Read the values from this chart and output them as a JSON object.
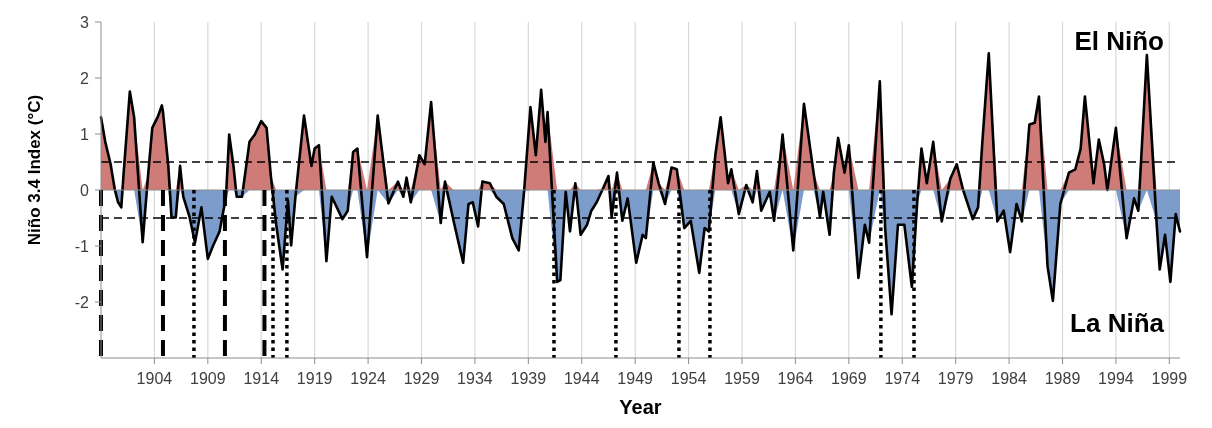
{
  "chart_data": {
    "type": "line",
    "xlabel": "Year",
    "ylabel": "Niño 3.4 Index (°C)",
    "annotations": [
      "El Niño",
      "La Niña"
    ],
    "xlim": [
      1899,
      2000
    ],
    "xticks": [
      1904,
      1909,
      1914,
      1919,
      1924,
      1929,
      1934,
      1939,
      1944,
      1949,
      1954,
      1959,
      1964,
      1969,
      1974,
      1979,
      1984,
      1989,
      1994,
      1999
    ],
    "ylim": [
      -3,
      3
    ],
    "yticks": [
      -2,
      -1,
      0,
      1,
      2,
      3
    ],
    "grid": "x",
    "marker": "none",
    "line_style": "solid",
    "x": [
      1899,
      1899.4,
      1899.9,
      1900.3,
      1900.6,
      1900.9,
      1901.1,
      1901.7,
      1902.1,
      1902.9,
      1903.4,
      1903.8,
      1904.3,
      1904.7,
      1904.8,
      1905.3,
      1905.6,
      1906,
      1906.4,
      1906.7,
      1907.3,
      1907.8,
      1908.4,
      1909,
      1909.5,
      1910.1,
      1910.7,
      1911,
      1911.4,
      1911.7,
      1912.2,
      1912.9,
      1913.4,
      1914,
      1914.5,
      1914.9,
      1915.4,
      1916,
      1916.5,
      1916.8,
      1917.2,
      1918,
      1918.7,
      1919,
      1919.4,
      1920.1,
      1920.6,
      1920.9,
      1921.6,
      1922.1,
      1922.6,
      1923,
      1923.9,
      1924.9,
      1925.9,
      1926.8,
      1927.3,
      1927.6,
      1928,
      1928.8,
      1929.3,
      1929.9,
      1930.8,
      1931.2,
      1932,
      1932.9,
      1933.4,
      1933.8,
      1934.3,
      1934.7,
      1935.4,
      1936,
      1936.7,
      1937.5,
      1938.1,
      1938.6,
      1939.2,
      1939.7,
      1940.2,
      1940.6,
      1940.8,
      1941.7,
      1942,
      1942.5,
      1942.9,
      1943.4,
      1943.9,
      1944.5,
      1944.9,
      1945.4,
      1946,
      1946.5,
      1946.8,
      1947.3,
      1947.8,
      1948.3,
      1949.1,
      1949.7,
      1950,
      1950.7,
      1951.2,
      1951.8,
      1952.4,
      1952.9,
      1953.6,
      1954.2,
      1955,
      1955.5,
      1955.9,
      1956.5,
      1957,
      1957.7,
      1958,
      1958.7,
      1959.4,
      1960,
      1960.4,
      1960.8,
      1961.6,
      1962,
      1962.8,
      1963.8,
      1964.8,
      1965.7,
      1966.3,
      1966.6,
      1967.2,
      1967.6,
      1968,
      1968.6,
      1969,
      1969.9,
      1970.5,
      1970.9,
      1971.9,
      1972.4,
      1973,
      1973.6,
      1974.2,
      1974.9,
      1975.4,
      1975.8,
      1976.3,
      1976.9,
      1977.7,
      1978.5,
      1979.1,
      1979.7,
      1980.6,
      1981.1,
      1981.5,
      1982.1,
      1982.9,
      1983.5,
      1984.1,
      1984.7,
      1985.2,
      1985.9,
      1986.4,
      1986.8,
      1987.6,
      1988.1,
      1988.8,
      1989.6,
      1990.2,
      1990.7,
      1991.1,
      1991.9,
      1992.4,
      1992.9,
      1993.2,
      1994,
      1995,
      1995.7,
      1996.1,
      1996.9,
      1997.8,
      1998.1,
      1998.6,
      1999.1,
      1999.6,
      2000
    ],
    "series": [
      {
        "type": "area",
        "color": "#cf7b78",
        "values": [
          1.3,
          0.86,
          0.46,
          0,
          0,
          0,
          0.25,
          1.76,
          1.3,
          0,
          0.25,
          1.11,
          1.3,
          1.51,
          1.4,
          0.43,
          0,
          0,
          0.43,
          0,
          0,
          0,
          0,
          0,
          0,
          0,
          0,
          0.99,
          0.43,
          0,
          0,
          0.86,
          0.99,
          1.23,
          1.11,
          0.25,
          0,
          0,
          0,
          0,
          0,
          1.33,
          0.43,
          0.74,
          0.8,
          0,
          0,
          0,
          0,
          0,
          0.68,
          0.74,
          0,
          1.33,
          0,
          0.15,
          0,
          0.22,
          0,
          0.62,
          0.46,
          1.57,
          0,
          0.15,
          0,
          0,
          0,
          0,
          0,
          0.15,
          0.12,
          0,
          0,
          0,
          0,
          0,
          1.48,
          0.62,
          1.79,
          0.86,
          1.39,
          0,
          0,
          0,
          0,
          0.12,
          0,
          0,
          0,
          0,
          0.03,
          0.25,
          0,
          0.31,
          0,
          0,
          0,
          0,
          0,
          0.49,
          0.12,
          0,
          0.4,
          0.37,
          0,
          0,
          0,
          0,
          0,
          0.62,
          1.3,
          0.12,
          0.37,
          0,
          0.09,
          0,
          0.34,
          0,
          0,
          0,
          0.99,
          0,
          1.54,
          0.31,
          0,
          0,
          0,
          0.31,
          0.93,
          0.31,
          0.8,
          0,
          0,
          0,
          1.94,
          0,
          0,
          0,
          0,
          0,
          0,
          0.74,
          0.12,
          0.86,
          0,
          0.2,
          0.46,
          0,
          0,
          0,
          0.86,
          2.44,
          0,
          0,
          0,
          0,
          0,
          1.17,
          1.2,
          1.67,
          0,
          0,
          0,
          0.31,
          0.37,
          0.74,
          1.67,
          0.12,
          0.9,
          0.46,
          0,
          1.11,
          0,
          0,
          0,
          2.41,
          0,
          0,
          0,
          0,
          0,
          0
        ]
      },
      {
        "type": "area",
        "color": "#7c9ccc",
        "values": [
          0,
          0,
          0,
          0,
          -0.22,
          -0.31,
          0,
          0,
          0,
          -0.93,
          0,
          0,
          0,
          0,
          0,
          0,
          -0.49,
          -0.49,
          0,
          -0.12,
          -0.49,
          -0.94,
          -0.31,
          -1.23,
          -0.99,
          -0.74,
          -0.12,
          0,
          0,
          -0.12,
          -0.12,
          0,
          0,
          0,
          0,
          0,
          -0.62,
          -1.42,
          -0.19,
          -0.99,
          -0.12,
          0,
          0,
          0,
          0,
          -1.27,
          -0.12,
          -0.24,
          -0.52,
          -0.37,
          0,
          0,
          -1.2,
          0,
          -0.24,
          0,
          -0.12,
          0,
          -0.22,
          0,
          0,
          0,
          -0.59,
          0,
          -0.55,
          -1.3,
          -0.25,
          -0.22,
          -0.65,
          0,
          0,
          -0.12,
          -0.25,
          -0.86,
          -1.08,
          -0.03,
          0,
          0,
          0,
          0,
          0,
          -1.64,
          -1.61,
          -0.03,
          -0.74,
          0,
          -0.8,
          -0.62,
          -0.37,
          -0.22,
          0,
          0,
          -0.49,
          0,
          -0.55,
          -0.15,
          -1.3,
          -0.8,
          -0.86,
          0,
          0,
          -0.25,
          0,
          0,
          -0.68,
          -0.55,
          -1.48,
          -0.68,
          -0.74,
          0,
          0,
          0,
          0,
          -0.43,
          0,
          -0.22,
          0,
          -0.37,
          -0.03,
          -0.55,
          0,
          -1.08,
          0,
          0,
          -0.49,
          -0.03,
          -0.8,
          0,
          0,
          0,
          0,
          -1.57,
          -0.62,
          -0.94,
          0,
          -0.68,
          -2.22,
          -0.62,
          -0.62,
          -1.73,
          -0.22,
          0,
          0,
          0,
          -0.56,
          0,
          0,
          0,
          -0.52,
          -0.31,
          0,
          0,
          -0.56,
          -0.37,
          -1.11,
          -0.25,
          -0.56,
          0,
          0,
          0,
          -1.36,
          -1.98,
          -0.25,
          0,
          0,
          0,
          0,
          0,
          0,
          0,
          0,
          0,
          -0.86,
          -0.15,
          -0.37,
          0,
          -0.56,
          -1.42,
          -0.8,
          -1.64,
          -0.43,
          -0.74
        ]
      },
      {
        "color": "#000000",
        "values": [
          1.3,
          0.86,
          0.46,
          0,
          -0.22,
          -0.31,
          0.25,
          1.76,
          1.3,
          -0.93,
          0.25,
          1.11,
          1.3,
          1.51,
          1.4,
          0.43,
          -0.49,
          -0.49,
          0.43,
          -0.12,
          -0.49,
          -0.94,
          -0.31,
          -1.23,
          -0.99,
          -0.74,
          -0.12,
          0.99,
          0.43,
          -0.12,
          -0.12,
          0.86,
          0.99,
          1.23,
          1.11,
          0.25,
          -0.62,
          -1.42,
          -0.19,
          -0.99,
          -0.12,
          1.33,
          0.43,
          0.74,
          0.8,
          -1.27,
          -0.12,
          -0.24,
          -0.52,
          -0.37,
          0.68,
          0.74,
          -1.2,
          1.33,
          -0.24,
          0.15,
          -0.12,
          0.22,
          -0.22,
          0.62,
          0.46,
          1.57,
          -0.59,
          0.15,
          -0.55,
          -1.3,
          -0.25,
          -0.22,
          -0.65,
          0.15,
          0.12,
          -0.12,
          -0.25,
          -0.86,
          -1.08,
          -0.03,
          1.48,
          0.62,
          1.79,
          0.86,
          1.39,
          -1.64,
          -1.61,
          -0.03,
          -0.74,
          0.12,
          -0.8,
          -0.62,
          -0.37,
          -0.22,
          0.03,
          0.25,
          -0.49,
          0.31,
          -0.55,
          -0.15,
          -1.3,
          -0.8,
          -0.86,
          0.49,
          0.12,
          -0.25,
          0.4,
          0.37,
          -0.68,
          -0.55,
          -1.48,
          -0.68,
          -0.74,
          0.62,
          1.3,
          0.12,
          0.37,
          -0.43,
          0.09,
          -0.22,
          0.34,
          -0.37,
          -0.03,
          -0.55,
          0.99,
          -1.08,
          1.54,
          0.31,
          -0.49,
          -0.03,
          -0.8,
          0.31,
          0.93,
          0.31,
          0.8,
          -1.57,
          -0.62,
          -0.94,
          1.94,
          -0.68,
          -2.22,
          -0.62,
          -0.62,
          -1.73,
          -0.22,
          0.74,
          0.12,
          0.86,
          -0.56,
          0.2,
          0.46,
          0,
          -0.52,
          -0.31,
          0.86,
          2.44,
          -0.56,
          -0.37,
          -1.11,
          -0.25,
          -0.56,
          1.17,
          1.2,
          1.67,
          -1.36,
          -1.98,
          -0.25,
          0.31,
          0.37,
          0.74,
          1.67,
          0.12,
          0.9,
          0.46,
          0,
          1.11,
          -0.86,
          -0.15,
          -0.37,
          2.41,
          -0.56,
          -1.42,
          -0.8,
          -1.64,
          -0.43,
          -0.74
        ]
      }
    ],
    "ref_lines": [
      {
        "axis": "y",
        "value": 0.5,
        "line_style": "dashed",
        "color": "#000000"
      },
      {
        "axis": "y",
        "value": -0.5,
        "line_style": "dashed",
        "color": "#000000"
      },
      {
        "axis": "x",
        "value": 1899,
        "line_style": "dashed",
        "color": "#000000"
      },
      {
        "axis": "x",
        "value": 1904.8,
        "line_style": "dashed",
        "color": "#000000"
      },
      {
        "axis": "x",
        "value": 1907.7,
        "line_style": "dotted",
        "color": "#000000"
      },
      {
        "axis": "x",
        "value": 1910.6,
        "line_style": "dashed",
        "color": "#000000"
      },
      {
        "axis": "x",
        "value": 1914.3,
        "line_style": "dashed",
        "color": "#000000"
      },
      {
        "axis": "x",
        "value": 1915.1,
        "line_style": "dotted",
        "color": "#000000"
      },
      {
        "axis": "x",
        "value": 1916.4,
        "line_style": "dotted",
        "color": "#000000"
      },
      {
        "axis": "x",
        "value": 1941.4,
        "line_style": "dotted",
        "color": "#000000"
      },
      {
        "axis": "x",
        "value": 1947.2,
        "line_style": "dotted",
        "color": "#000000"
      },
      {
        "axis": "x",
        "value": 1953.1,
        "line_style": "dotted",
        "color": "#000000"
      },
      {
        "axis": "x",
        "value": 1956,
        "line_style": "dotted",
        "color": "#000000"
      },
      {
        "axis": "x",
        "value": 1972,
        "line_style": "dotted",
        "color": "#000000"
      },
      {
        "axis": "x",
        "value": 1975.1,
        "line_style": "dotted",
        "color": "#000000"
      }
    ]
  }
}
